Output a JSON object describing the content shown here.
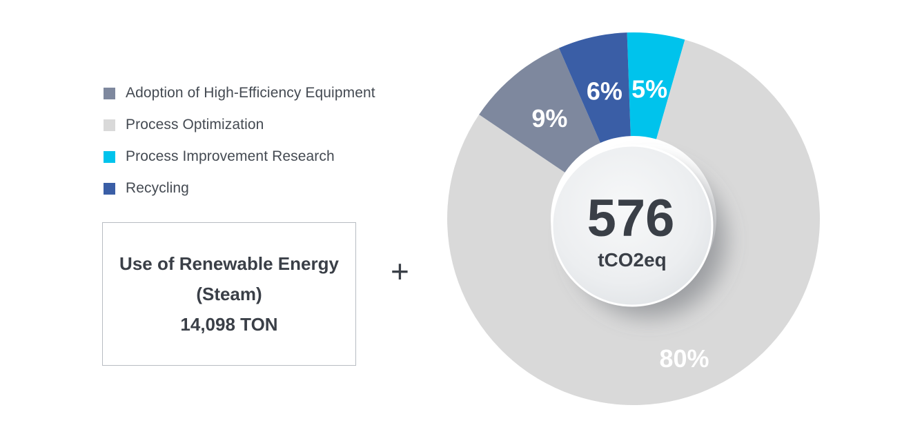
{
  "legend": [
    {
      "label": "Adoption of High-Efficiency Equipment",
      "color": "#7e889e"
    },
    {
      "label": "Process Optimization",
      "color": "#d9d9d9"
    },
    {
      "label": "Process Improvement Research",
      "color": "#00c3ec"
    },
    {
      "label": "Recycling",
      "color": "#3a5ea6"
    }
  ],
  "renewable": {
    "line1": "Use of Renewable Energy",
    "line2": "(Steam)",
    "line3": "14,098 TON"
  },
  "operator": "+",
  "chart_data": {
    "type": "pie",
    "title": "",
    "center_value": "576",
    "center_unit": "tCO2eq",
    "slices": [
      {
        "name": "Process Improvement Research",
        "value": 5,
        "label": "5%",
        "color": "#00c3ec"
      },
      {
        "name": "Process Optimization",
        "value": 80,
        "label": "80%",
        "color": "#d9d9d9"
      },
      {
        "name": "Adoption of High-Efficiency Equipment",
        "value": 9,
        "label": "9%",
        "color": "#7e889e"
      },
      {
        "name": "Recycling",
        "value": 6,
        "label": "6%",
        "color": "#3a5ea6"
      }
    ]
  }
}
